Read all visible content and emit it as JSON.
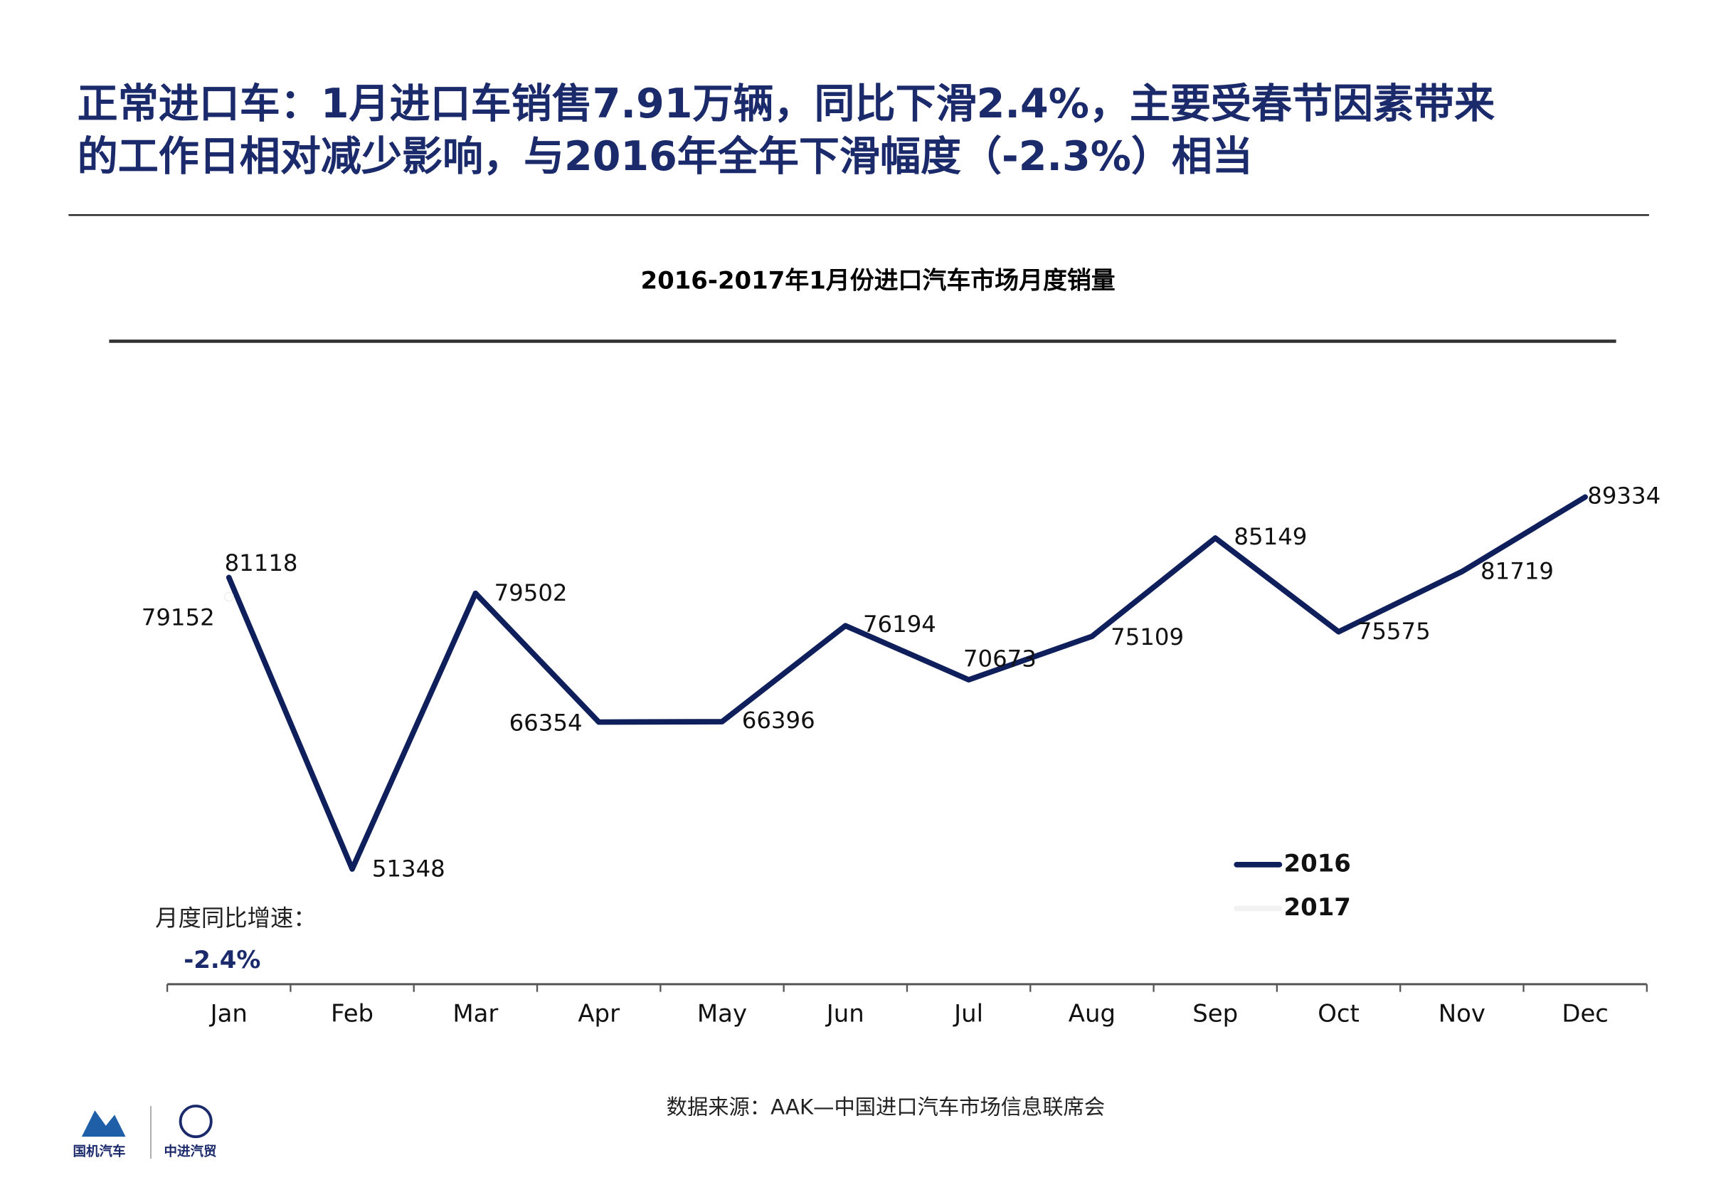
{
  "header": {
    "title_lines": [
      "正常进口车：1月进口车销售7.91万辆，同比下滑2.4%，主要受春节因素带来",
      "的工作日相对减少影响，与2016年全年下滑幅度（-2.3%）相当"
    ]
  },
  "chart_data": {
    "type": "line",
    "title": "2016-2017年1月份进口汽车市场月度销量",
    "categories": [
      "Jan",
      "Feb",
      "Mar",
      "Apr",
      "May",
      "Jun",
      "Jul",
      "Aug",
      "Sep",
      "Oct",
      "Nov",
      "Dec"
    ],
    "series": [
      {
        "name": "2016",
        "color": "#0f1f5c",
        "values": [
          81118,
          51348,
          79502,
          66354,
          66396,
          76194,
          70673,
          75109,
          85149,
          75575,
          81719,
          89334
        ]
      },
      {
        "name": "2017",
        "color": "#ffffff",
        "values": [
          79152,
          null,
          null,
          null,
          null,
          null,
          null,
          null,
          null,
          null,
          null,
          null
        ]
      }
    ],
    "annotation": {
      "label": "月度同比增速：",
      "value": "-2.4%"
    },
    "legend": "lower right"
  },
  "footer": {
    "source": "数据来源：AAK—中国进口汽车市场信息联席会",
    "logos": [
      "国机汽车",
      "中进汽贸"
    ]
  }
}
